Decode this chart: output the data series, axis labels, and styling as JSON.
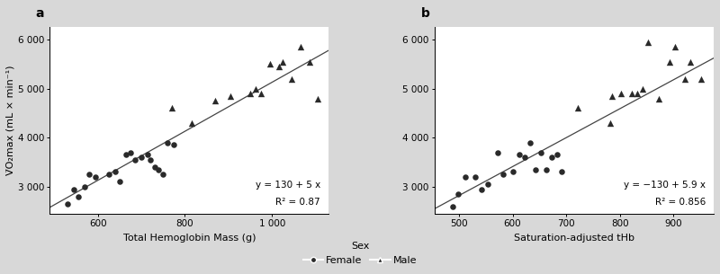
{
  "panel_a": {
    "label": "a",
    "female_x": [
      530,
      545,
      555,
      570,
      580,
      595,
      625,
      640,
      650,
      665,
      675,
      685,
      700,
      715,
      720,
      730,
      740,
      750,
      760,
      775
    ],
    "female_y": [
      2650,
      2950,
      2800,
      3000,
      3250,
      3200,
      3250,
      3300,
      3100,
      3650,
      3700,
      3550,
      3600,
      3650,
      3550,
      3400,
      3350,
      3250,
      3900,
      3850
    ],
    "male_x": [
      770,
      815,
      870,
      905,
      950,
      963,
      975,
      995,
      1015,
      1025,
      1045,
      1065,
      1085,
      1105
    ],
    "male_y": [
      4600,
      4300,
      4750,
      4850,
      4900,
      5000,
      4900,
      5500,
      5450,
      5550,
      5200,
      5850,
      5550,
      4800
    ],
    "slope": 5,
    "intercept": 130,
    "equation": "y = 130 + 5 x",
    "r2_text": "R² = 0.87",
    "xlim": [
      490,
      1130
    ],
    "ylim": [
      2450,
      6250
    ],
    "xtick_vals": [
      600,
      800,
      1000
    ],
    "xtick_labels": [
      "600",
      "800",
      "1 000"
    ],
    "ytick_vals": [
      3000,
      4000,
      5000,
      6000
    ],
    "ytick_labels": [
      "3 000",
      "4 000",
      "5 000",
      "6 000"
    ],
    "xlabel": "Total Hemoglobin Mass (g)",
    "ylabel": "V̇O₂max (mL × min⁻¹)"
  },
  "panel_b": {
    "label": "b",
    "female_x": [
      488,
      498,
      512,
      530,
      542,
      553,
      572,
      582,
      600,
      612,
      622,
      633,
      643,
      652,
      663,
      673,
      683,
      692
    ],
    "female_y": [
      2600,
      2850,
      3200,
      3200,
      2950,
      3050,
      3700,
      3250,
      3300,
      3650,
      3600,
      3900,
      3350,
      3700,
      3350,
      3600,
      3650,
      3300
    ],
    "male_x": [
      722,
      782,
      785,
      802,
      822,
      832,
      843,
      852,
      872,
      892,
      902,
      922,
      932,
      952
    ],
    "male_y": [
      4600,
      4300,
      4850,
      4900,
      4900,
      4900,
      5000,
      5950,
      4800,
      5550,
      5850,
      5200,
      5550,
      5200
    ],
    "slope": 5.9,
    "intercept": -130,
    "equation": "y = −130 + 5.9 x",
    "r2_text": "R² = 0.856",
    "xlim": [
      455,
      975
    ],
    "ylim": [
      2450,
      6250
    ],
    "xtick_vals": [
      500,
      600,
      700,
      800,
      900
    ],
    "xtick_labels": [
      "500",
      "600",
      "700",
      "800",
      "900"
    ],
    "ytick_vals": [
      3000,
      4000,
      5000,
      6000
    ],
    "ytick_labels": [
      "3 000",
      "4 000",
      "5 000",
      "6 000"
    ],
    "xlabel": "Saturation-adjusted tHb",
    "ylabel": ""
  },
  "marker_color": "#2a2a2a",
  "line_color": "#444444",
  "fig_bg_color": "#d8d8d8",
  "axes_bg": "#ffffff",
  "legend_female_label": "Female",
  "legend_male_label": "Male",
  "legend_sex_label": "Sex"
}
